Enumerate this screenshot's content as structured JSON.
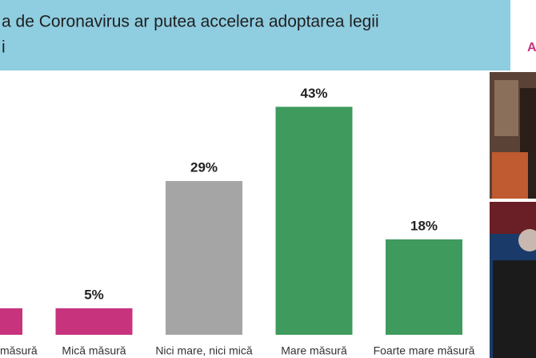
{
  "chart_data": {
    "type": "bar",
    "title": [
      "a de Coronavirus ar putea accelera adoptarea legii",
      "i"
    ],
    "logo": "A",
    "categories": [
      "măsură",
      "Mică măsură",
      "Nici mare, nici mică",
      "Mare măsură",
      "Foarte mare măsură"
    ],
    "values": [
      5,
      5,
      29,
      43,
      18
    ],
    "value_labels": [
      null,
      "5%",
      "29%",
      "43%",
      "18%"
    ],
    "colors": [
      "#c7337d",
      "#c7337d",
      "#a5a5a5",
      "#3f9a5e",
      "#3f9a5e"
    ],
    "ylim": [
      0,
      50
    ]
  }
}
